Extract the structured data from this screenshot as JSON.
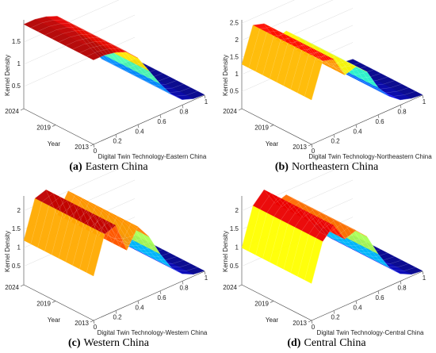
{
  "chart_data": [
    {
      "type": "surface",
      "zlabel": "Kernel Density",
      "ylabel": "Year",
      "xlabel": "Digital Twin Technology-Eastern China",
      "caption_label": "(a)",
      "caption": "Eastern China",
      "xlim": [
        0,
        1
      ],
      "xticks": [
        0,
        0.2,
        0.4,
        0.6,
        0.8,
        1
      ],
      "ylim": [
        2013,
        2024
      ],
      "yticks": [
        2024,
        2019,
        2013
      ],
      "zlim": [
        0,
        2
      ],
      "zticks": [
        0.5,
        1,
        1.5
      ],
      "x": [
        0,
        0.1,
        0.2,
        0.3,
        0.4,
        0.5,
        0.6,
        0.7,
        0.8,
        0.9,
        1
      ],
      "density": [
        1.9,
        1.9,
        1.85,
        1.75,
        1.5,
        1.1,
        0.7,
        0.35,
        0.12,
        0.03,
        0.01
      ]
    },
    {
      "type": "surface",
      "zlabel": "Kernel Density",
      "ylabel": "Year",
      "xlabel": "Digital Twin Technology-Northeastern China",
      "caption_label": "(b)",
      "caption": "Northeastern China",
      "xlim": [
        0,
        1
      ],
      "xticks": [
        0,
        0.2,
        0.4,
        0.6,
        0.8,
        1
      ],
      "ylim": [
        2013,
        2024
      ],
      "yticks": [
        2024,
        2019,
        2013
      ],
      "zlim": [
        0,
        2.6
      ],
      "zticks": [
        0.5,
        1,
        1.5,
        2,
        2.5
      ],
      "x": [
        0,
        0.1,
        0.2,
        0.3,
        0.4,
        0.5,
        0.6,
        0.7,
        0.8,
        0.9,
        1
      ],
      "density": [
        1.3,
        2.3,
        2.2,
        1.6,
        1.7,
        1.4,
        0.8,
        0.4,
        0.15,
        0.05,
        0.01
      ]
    },
    {
      "type": "surface",
      "zlabel": "Kernel Density",
      "ylabel": "Year",
      "xlabel": "Digital Twin Technology-Western China",
      "caption_label": "(c)",
      "caption": "Western China",
      "xlim": [
        0,
        1
      ],
      "xticks": [
        0,
        0.2,
        0.4,
        0.6,
        0.8,
        1
      ],
      "ylim": [
        2013,
        2024
      ],
      "yticks": [
        2024,
        2019,
        2013
      ],
      "zlim": [
        0,
        2.4
      ],
      "zticks": [
        0.5,
        1,
        1.5,
        2
      ],
      "x": [
        0,
        0.1,
        0.2,
        0.3,
        0.4,
        0.5,
        0.6,
        0.7,
        0.8,
        0.9,
        1
      ],
      "density": [
        1.2,
        2.2,
        2.3,
        1.5,
        2.0,
        1.6,
        1.0,
        0.5,
        0.2,
        0.05,
        0.01
      ]
    },
    {
      "type": "surface",
      "zlabel": "Kernel Density",
      "ylabel": "Year",
      "xlabel": "Digital Twin Technology-Central China",
      "caption_label": "(d)",
      "caption": "Central China",
      "xlim": [
        0,
        1
      ],
      "xticks": [
        0,
        0.2,
        0.4,
        0.6,
        0.8,
        1
      ],
      "ylim": [
        2013,
        2024
      ],
      "yticks": [
        2024,
        2019,
        2013
      ],
      "zlim": [
        0,
        2.4
      ],
      "zticks": [
        0.5,
        1,
        1.5,
        2
      ],
      "x": [
        0,
        0.1,
        0.2,
        0.3,
        0.4,
        0.5,
        0.6,
        0.7,
        0.8,
        0.9,
        1
      ],
      "density": [
        1.0,
        2.0,
        2.3,
        1.8,
        1.9,
        1.6,
        1.0,
        0.5,
        0.2,
        0.05,
        0.01
      ]
    }
  ]
}
